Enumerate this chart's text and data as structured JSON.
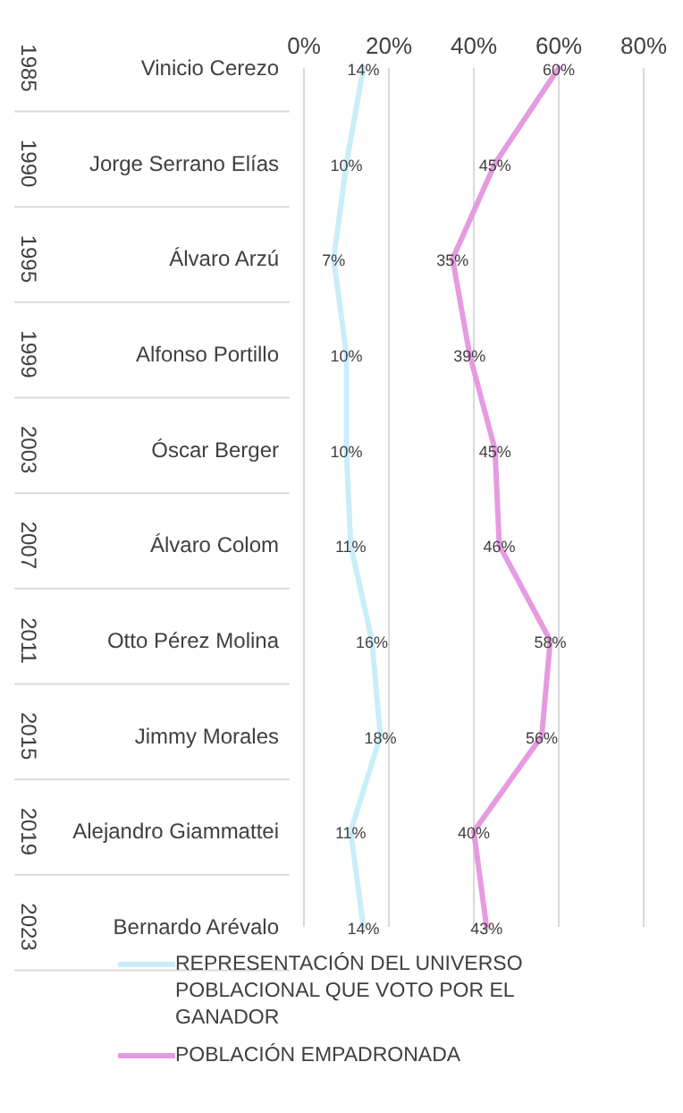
{
  "chart_data": {
    "type": "line",
    "orientation": "horizontal",
    "categories": [
      "Vinicio Cerezo",
      "Jorge Serrano Elías",
      "Álvaro Arzú",
      "Alfonso Portillo",
      "Óscar Berger",
      "Álvaro Colom",
      "Otto Pérez Molina",
      "Jimmy Morales",
      "Alejandro Giammattei",
      "Bernardo Arévalo"
    ],
    "annotations": [
      "1985",
      "1990",
      "1995",
      "1999",
      "2003",
      "2007",
      "2011",
      "2015",
      "2019",
      "2023"
    ],
    "series": [
      {
        "name": "REPRESENTACIÓN DEL UNIVERSO POBLACIONAL QUE VOTO POR EL GANADOR",
        "color": "#c9eefa",
        "values": [
          14,
          10,
          7,
          10,
          10,
          11,
          16,
          18,
          11,
          14
        ],
        "value_labels": [
          "14%",
          "10%",
          "7%",
          "10%",
          "10%",
          "11%",
          "16%",
          "18%",
          "11%",
          "14%"
        ]
      },
      {
        "name": "POBLACIÓN EMPADRONADA",
        "color": "#e69ae0",
        "values": [
          60,
          45,
          35,
          39,
          45,
          46,
          58,
          56,
          40,
          43
        ],
        "value_labels": [
          "60%",
          "45%",
          "35%",
          "39%",
          "45%",
          "46%",
          "58%",
          "56%",
          "40%",
          "43%"
        ]
      }
    ],
    "xlim": [
      0,
      80
    ],
    "xticks": [
      {
        "value": 0,
        "label": "0%"
      },
      {
        "value": 20,
        "label": "20%"
      },
      {
        "value": 40,
        "label": "40%"
      },
      {
        "value": 60,
        "label": "60%"
      },
      {
        "value": 80,
        "label": "80%"
      }
    ],
    "grid": "x",
    "legend": "bottom",
    "marker": "none",
    "line_style": "solid"
  }
}
